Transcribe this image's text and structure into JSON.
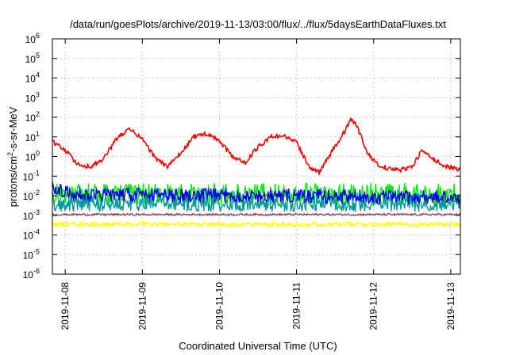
{
  "chart_data": {
    "type": "line",
    "title": "/data/run/goesPlots/archive/2019-11-13/03:00/flux/../flux/5daysEarthDataFluxes.txt",
    "xlabel": "Coordinated Universal Time (UTC)",
    "ylabel_parts": [
      "protons/cm",
      "2",
      "-s-sr-MeV"
    ],
    "y_scale": "log",
    "ylim": [
      1e-06,
      1000000.0
    ],
    "y_ticks": [
      {
        "value": 1e-06,
        "base": "10",
        "exp": "-6"
      },
      {
        "value": 1e-05,
        "base": "10",
        "exp": "-5"
      },
      {
        "value": 0.0001,
        "base": "10",
        "exp": "-4"
      },
      {
        "value": 0.001,
        "base": "10",
        "exp": "-3"
      },
      {
        "value": 0.01,
        "base": "10",
        "exp": "-2"
      },
      {
        "value": 0.1,
        "base": "10",
        "exp": "-1"
      },
      {
        "value": 1,
        "base": "10",
        "exp": "0"
      },
      {
        "value": 10,
        "base": "10",
        "exp": "1"
      },
      {
        "value": 100,
        "base": "10",
        "exp": "2"
      },
      {
        "value": 1000,
        "base": "10",
        "exp": "3"
      },
      {
        "value": 10000,
        "base": "10",
        "exp": "4"
      },
      {
        "value": 100000,
        "base": "10",
        "exp": "5"
      },
      {
        "value": 1000000,
        "base": "10",
        "exp": "6"
      }
    ],
    "xlim": [
      "2019-11-07 20:00",
      "2019-11-13 03:00"
    ],
    "x_ticks": [
      "2019-11-08",
      "2019-11-09",
      "2019-11-10",
      "2019-11-11",
      "2019-11-12",
      "2019-11-13"
    ],
    "grid": true,
    "series": [
      {
        "color": "#ff0000",
        "noise": 0.12,
        "points": [
          [
            "2019-11-07 20:00",
            6
          ],
          [
            "2019-11-08 00:00",
            2
          ],
          [
            "2019-11-08 04:00",
            0.4
          ],
          [
            "2019-11-08 08:00",
            0.3
          ],
          [
            "2019-11-08 12:00",
            0.8
          ],
          [
            "2019-11-08 16:00",
            8
          ],
          [
            "2019-11-08 20:00",
            25
          ],
          [
            "2019-11-09 00:00",
            8
          ],
          [
            "2019-11-09 04:00",
            0.8
          ],
          [
            "2019-11-09 08:00",
            0.3
          ],
          [
            "2019-11-09 12:00",
            1.5
          ],
          [
            "2019-11-09 16:00",
            10
          ],
          [
            "2019-11-09 20:00",
            15
          ],
          [
            "2019-11-10 00:00",
            6
          ],
          [
            "2019-11-10 04:00",
            1
          ],
          [
            "2019-11-10 08:00",
            0.5
          ],
          [
            "2019-11-10 12:00",
            3
          ],
          [
            "2019-11-10 16:00",
            10
          ],
          [
            "2019-11-10 20:00",
            12
          ],
          [
            "2019-11-11 00:00",
            5
          ],
          [
            "2019-11-11 04:00",
            0.3
          ],
          [
            "2019-11-11 07:00",
            0.15
          ],
          [
            "2019-11-11 10:00",
            1
          ],
          [
            "2019-11-11 14:00",
            10
          ],
          [
            "2019-11-11 17:00",
            80
          ],
          [
            "2019-11-11 19:00",
            30
          ],
          [
            "2019-11-11 22:00",
            1.5
          ],
          [
            "2019-11-12 02:00",
            0.3
          ],
          [
            "2019-11-12 08:00",
            0.2
          ],
          [
            "2019-11-12 12:00",
            0.3
          ],
          [
            "2019-11-12 15:00",
            2
          ],
          [
            "2019-11-12 18:00",
            0.8
          ],
          [
            "2019-11-12 22:00",
            0.35
          ],
          [
            "2019-11-13 03:00",
            0.2
          ]
        ]
      },
      {
        "color": "#00ee00",
        "noise": 0.55,
        "points": [
          [
            "2019-11-07 20:00",
            0.012
          ],
          [
            "2019-11-13 03:00",
            0.012
          ]
        ]
      },
      {
        "color": "#009999",
        "noise": 0.4,
        "points": [
          [
            "2019-11-07 20:00",
            0.004
          ],
          [
            "2019-11-13 03:00",
            0.004
          ]
        ]
      },
      {
        "color": "#0000ee",
        "noise": 0.35,
        "points": [
          [
            "2019-11-07 20:00",
            0.03
          ],
          [
            "2019-11-08 02:00",
            0.012
          ],
          [
            "2019-11-13 03:00",
            0.008
          ]
        ]
      },
      {
        "color": "#ffff00",
        "noise": 0.12,
        "points": [
          [
            "2019-11-07 20:00",
            0.00035
          ],
          [
            "2019-11-13 03:00",
            0.00035
          ]
        ]
      },
      {
        "color": "#994466",
        "noise": 0.05,
        "points": [
          [
            "2019-11-07 20:00",
            0.0011
          ],
          [
            "2019-11-13 03:00",
            0.0011
          ]
        ]
      }
    ]
  }
}
